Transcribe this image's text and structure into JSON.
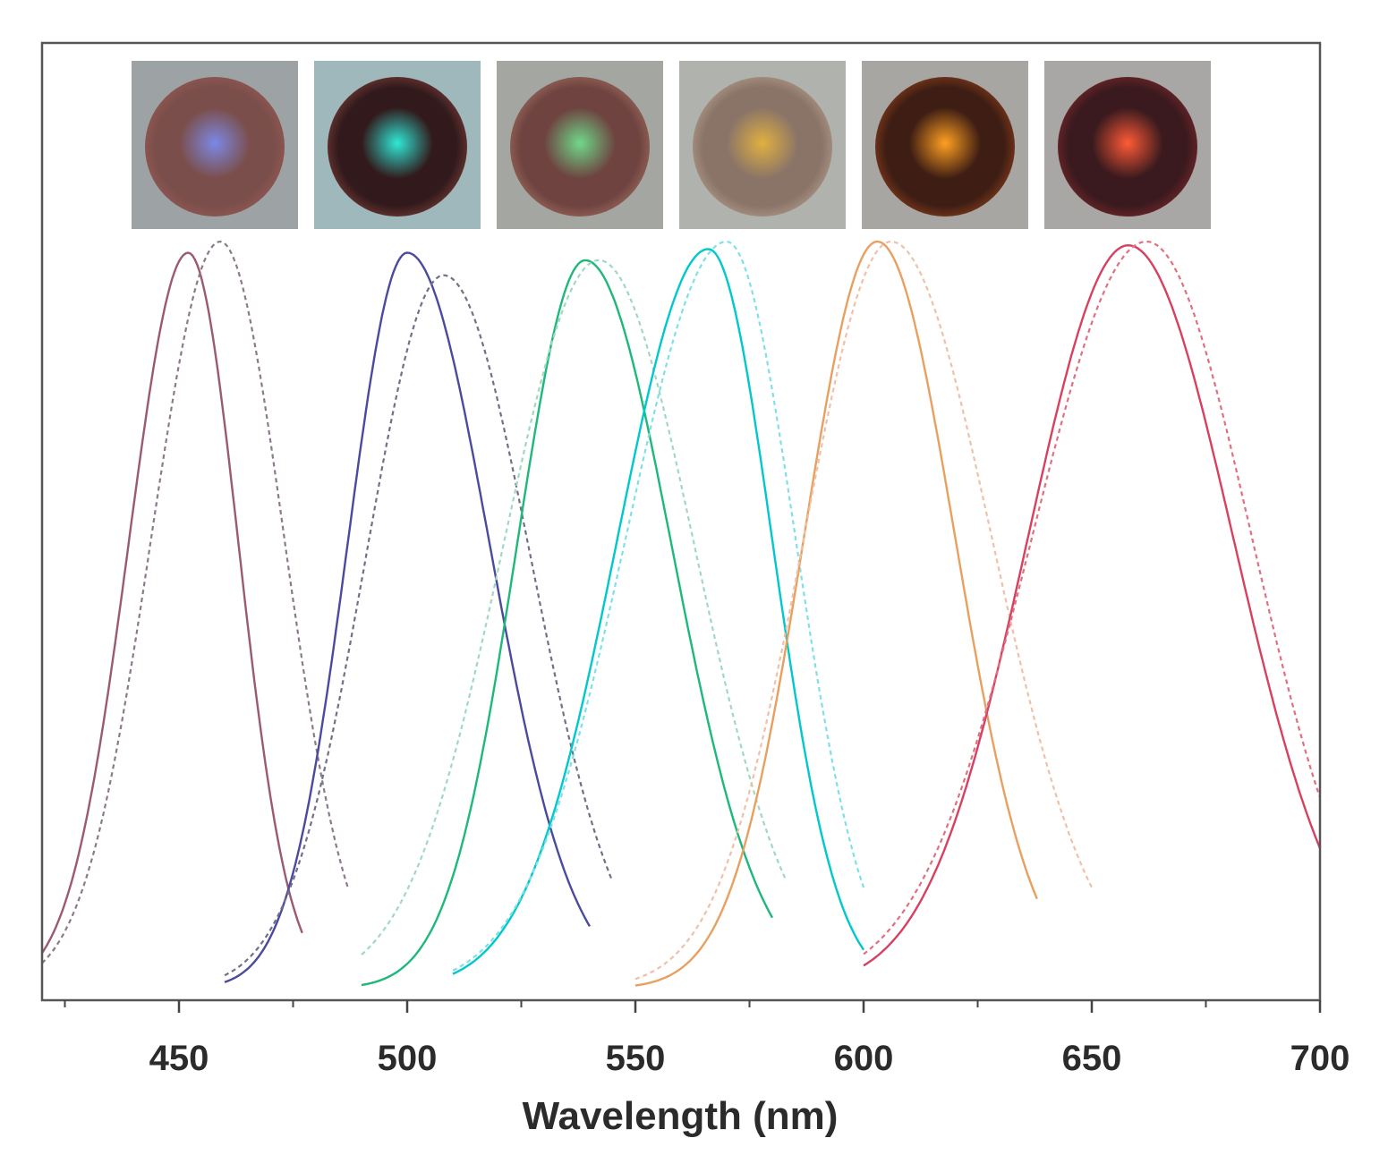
{
  "chart_data": {
    "type": "line",
    "title": "",
    "xlabel": "Wavelength (nm)",
    "ylabel": "",
    "xlim": [
      420,
      700
    ],
    "ylim": [
      0,
      1
    ],
    "x_ticks": [
      450,
      500,
      550,
      600,
      650,
      700
    ],
    "x_minor_ticks": [
      425,
      475,
      525,
      575,
      625,
      675
    ],
    "y_ticks_shown": false,
    "series": [
      {
        "name": "blue-solid",
        "style": "solid",
        "color": "#9b5a6e",
        "x_start": 420,
        "x_end": 477,
        "peak": 452,
        "sigma_left": 13,
        "sigma_right": 11,
        "amp": 0.985
      },
      {
        "name": "blue-dashed",
        "style": "dashed",
        "color": "#8a7a8a",
        "x_start": 420,
        "x_end": 487,
        "peak": 459,
        "sigma_left": 15,
        "sigma_right": 14,
        "amp": 1.0
      },
      {
        "name": "cyan-solid",
        "style": "solid",
        "color": "#4a4a9e",
        "x_start": 460,
        "x_end": 540,
        "peak": 500,
        "sigma_left": 13,
        "sigma_right": 18,
        "amp": 0.985
      },
      {
        "name": "cyan-dashed",
        "style": "dashed",
        "color": "#707088",
        "x_start": 460,
        "x_end": 545,
        "peak": 508,
        "sigma_left": 17,
        "sigma_right": 19,
        "amp": 0.955
      },
      {
        "name": "green-solid",
        "style": "solid",
        "color": "#1db87a",
        "x_start": 490,
        "x_end": 580,
        "peak": 539,
        "sigma_left": 15,
        "sigma_right": 19,
        "amp": 0.975
      },
      {
        "name": "green-dashed",
        "style": "dashed",
        "color": "#9fd9c2",
        "x_start": 490,
        "x_end": 583,
        "peak": 542,
        "sigma_left": 21,
        "sigma_right": 21,
        "amp": 0.975
      },
      {
        "name": "yellow-solid",
        "style": "solid",
        "color": "#00c8cc",
        "x_start": 510,
        "x_end": 600,
        "peak": 566,
        "sigma_left": 20,
        "sigma_right": 14,
        "amp": 0.99
      },
      {
        "name": "yellow-dashed",
        "style": "dashed",
        "color": "#7fe0e8",
        "x_start": 510,
        "x_end": 600,
        "peak": 570,
        "sigma_left": 22,
        "sigma_right": 15,
        "amp": 1.0
      },
      {
        "name": "orange-solid",
        "style": "solid",
        "color": "#e8a060",
        "x_start": 550,
        "x_end": 638,
        "peak": 603,
        "sigma_left": 16,
        "sigma_right": 17,
        "amp": 1.0
      },
      {
        "name": "orange-dashed",
        "style": "dashed",
        "color": "#f0c0a8",
        "x_start": 550,
        "x_end": 650,
        "peak": 606,
        "sigma_left": 19,
        "sigma_right": 22,
        "amp": 1.0
      },
      {
        "name": "red-solid",
        "style": "solid",
        "color": "#d84060",
        "x_start": 600,
        "x_end": 700,
        "peak": 658,
        "sigma_left": 22,
        "sigma_right": 23,
        "amp": 0.995
      },
      {
        "name": "red-dashed",
        "style": "dashed",
        "color": "#e07080",
        "x_start": 600,
        "x_end": 700,
        "peak": 662,
        "sigma_left": 25,
        "sigma_right": 23,
        "amp": 1.0
      }
    ],
    "inset_photos": [
      {
        "name": "blue",
        "disc": "#7a4e4a",
        "glow": "#7d88e6",
        "ring": "#8a5550",
        "frame": "#9da3a4"
      },
      {
        "name": "cyan",
        "disc": "#321a1c",
        "glow": "#2fe7d6",
        "ring": "#5a2e2c",
        "frame": "#9eb8bc"
      },
      {
        "name": "green",
        "disc": "#6e4340",
        "glow": "#6fd88a",
        "ring": "#8a5a50",
        "frame": "#a4a6a2"
      },
      {
        "name": "yellow",
        "disc": "#8a7468",
        "glow": "#e0b040",
        "ring": "#a08a7a",
        "frame": "#b0b2ae"
      },
      {
        "name": "orange",
        "disc": "#3e1e14",
        "glow": "#ffa020",
        "ring": "#6a3018",
        "frame": "#a8a6a2"
      },
      {
        "name": "red",
        "disc": "#3a1a1e",
        "glow": "#ff5a36",
        "ring": "#5e2226",
        "frame": "#a9a7a5"
      }
    ]
  }
}
